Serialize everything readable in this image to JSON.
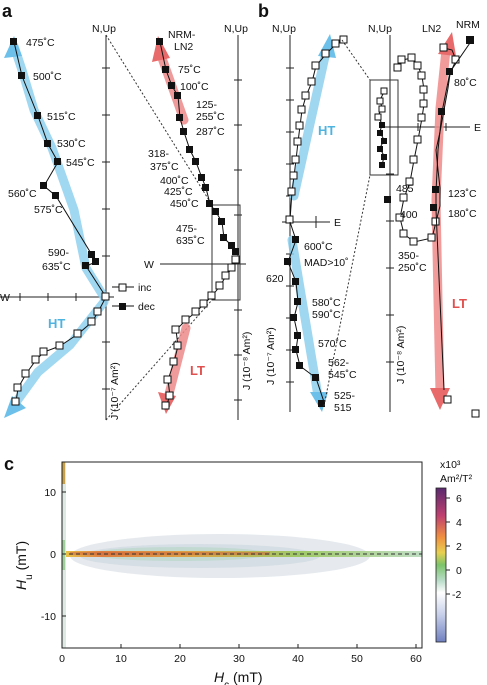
{
  "panels": {
    "a": "a",
    "b": "b",
    "c": "c"
  },
  "axes": {
    "n_up": "N,Up",
    "west": "W",
    "east": "E"
  },
  "panel_a": {
    "left": {
      "temps": [
        "475˚C",
        "500˚C",
        "515˚C",
        "530˚C",
        "545˚C",
        "560˚C",
        "575˚C",
        "590-",
        "635˚C"
      ],
      "component": "HT",
      "unit": "J (10⁻⁷ Am²)"
    },
    "right": {
      "temps": [
        "NRM-",
        "LN2",
        "75˚C",
        "100˚C",
        "125-",
        "255˚C",
        "287˚C",
        "318-",
        "375˚C",
        "400˚C",
        "425˚C",
        "450˚C",
        "475-",
        "635˚C"
      ],
      "component": "LT",
      "unit": "J (10⁻⁸ Am²)"
    },
    "legend": {
      "inc": "inc",
      "dec": "dec"
    }
  },
  "panel_b": {
    "left": {
      "temps": [
        "600˚C",
        "MAD>10˚",
        "620",
        "580˚C",
        "590˚C",
        "570˚C",
        "562-",
        "545˚C",
        "525-",
        "515"
      ],
      "component": "HT",
      "unit": "J (10⁻⁷ Am²)"
    },
    "right": {
      "temps": [
        "LN2",
        "NRM",
        "80˚C",
        "485",
        "123˚C",
        "400",
        "180˚C",
        "350-",
        "250˚C"
      ],
      "component": "LT",
      "unit": "J (10⁻⁸ Am²)"
    }
  },
  "panel_c": {
    "ylabel_main": "H",
    "ylabel_sub": "u",
    "ylabel_unit": " (mT)",
    "xlabel_main": "H",
    "xlabel_sub": "c",
    "xlabel_unit": " (mT)",
    "x_ticks": [
      "0",
      "10",
      "20",
      "30",
      "40",
      "50",
      "60"
    ],
    "y_ticks": [
      "10",
      "0",
      "-10"
    ],
    "cbar_title1": "x10³",
    "cbar_title2": "Am²/T²",
    "cbar_ticks": [
      "6",
      "4",
      "2",
      "0",
      "-2"
    ]
  }
}
